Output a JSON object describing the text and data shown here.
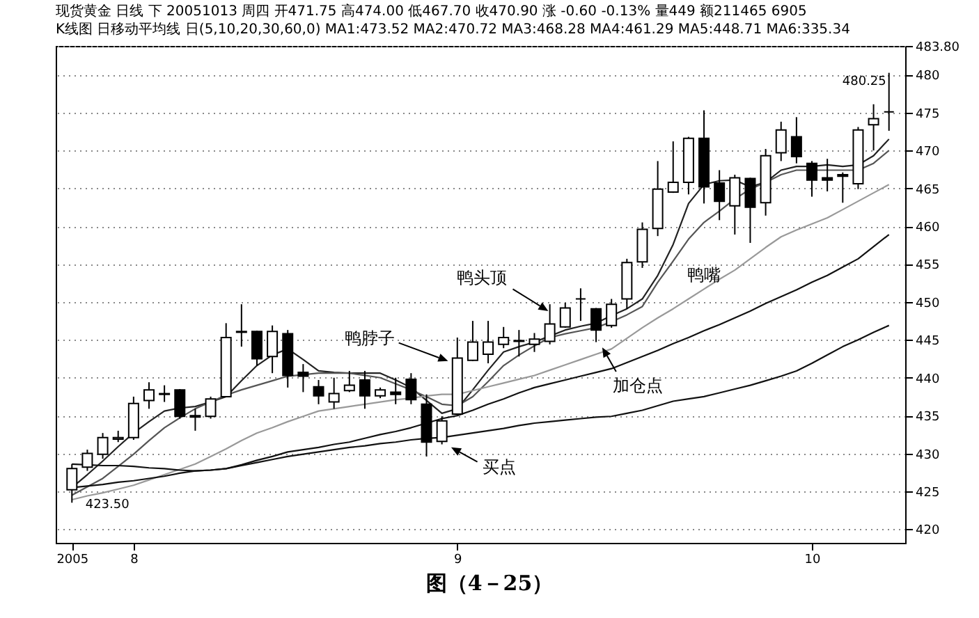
{
  "chart_data": {
    "type": "candlestick",
    "title": "现货黄金 日线 下 20051013 周四 开471.75 高474.00 低467.70 收470.90 涨 -0.60 -0.13% 量449 额211465 6905",
    "subtitle": "K线图 日移动平均线 日(5,10,20,30,60,0) MA1:473.52 MA2:470.72 MA3:468.28 MA4:461.29 MA5:448.71 MA6:335.34",
    "categories": [
      "2005",
      null,
      null,
      null,
      "8",
      null,
      null,
      null,
      null,
      null,
      null,
      null,
      null,
      null,
      null,
      null,
      null,
      null,
      null,
      null,
      null,
      null,
      null,
      null,
      null,
      "9",
      null,
      null,
      null,
      null,
      null,
      null,
      null,
      null,
      null,
      null,
      null,
      null,
      null,
      null,
      null,
      null,
      null,
      null,
      null,
      null,
      null,
      null,
      "10",
      null,
      null,
      null,
      null,
      null
    ],
    "ohlc": [
      [
        425.2,
        428.6,
        423.5,
        428.0
      ],
      [
        428.2,
        430.5,
        427.7,
        430.0
      ],
      [
        429.9,
        432.7,
        429.3,
        432.1
      ],
      [
        431.9,
        433.0,
        431.5,
        432.1
      ],
      [
        432.1,
        437.5,
        431.8,
        436.6
      ],
      [
        437.0,
        439.4,
        435.9,
        438.4
      ],
      [
        437.8,
        439.0,
        436.8,
        437.9
      ],
      [
        438.4,
        438.5,
        434.6,
        434.9
      ],
      [
        435.0,
        435.9,
        433.0,
        434.8
      ],
      [
        434.9,
        437.5,
        434.6,
        437.2
      ],
      [
        437.5,
        447.2,
        437.4,
        445.3
      ],
      [
        446.1,
        449.7,
        444.1,
        446.0
      ],
      [
        446.1,
        446.2,
        441.6,
        442.5
      ],
      [
        442.8,
        446.9,
        440.6,
        446.1
      ],
      [
        445.8,
        446.3,
        438.7,
        440.3
      ],
      [
        440.7,
        441.8,
        438.1,
        440.2
      ],
      [
        438.8,
        439.7,
        436.5,
        437.6
      ],
      [
        436.8,
        440.0,
        435.9,
        437.9
      ],
      [
        438.3,
        440.9,
        438.1,
        439.0
      ],
      [
        439.7,
        440.9,
        435.9,
        437.6
      ],
      [
        437.6,
        438.7,
        437.3,
        438.4
      ],
      [
        438.1,
        440.0,
        436.5,
        437.8
      ],
      [
        439.8,
        440.6,
        436.5,
        437.1
      ],
      [
        436.5,
        437.8,
        429.6,
        431.5
      ],
      [
        431.6,
        434.9,
        431.2,
        434.3
      ],
      [
        435.2,
        445.3,
        435.1,
        442.6
      ],
      [
        442.3,
        447.5,
        442.2,
        444.7
      ],
      [
        443.1,
        447.5,
        441.9,
        444.7
      ],
      [
        444.4,
        446.7,
        443.9,
        445.3
      ],
      [
        444.8,
        446.3,
        442.8,
        444.9
      ],
      [
        444.4,
        445.9,
        443.4,
        445.1
      ],
      [
        444.8,
        449.7,
        444.4,
        447.1
      ],
      [
        446.7,
        449.9,
        446.6,
        449.2
      ],
      [
        450.4,
        451.8,
        447.5,
        450.4
      ],
      [
        449.1,
        449.2,
        444.7,
        446.3
      ],
      [
        446.9,
        450.4,
        446.6,
        449.7
      ],
      [
        450.4,
        455.7,
        449.1,
        455.2
      ],
      [
        455.3,
        460.5,
        454.5,
        459.6
      ],
      [
        459.7,
        468.6,
        458.7,
        464.9
      ],
      [
        464.5,
        471.2,
        464.4,
        465.8
      ],
      [
        465.8,
        471.8,
        464.2,
        471.6
      ],
      [
        471.6,
        475.3,
        463.0,
        465.2
      ],
      [
        465.7,
        467.4,
        460.8,
        463.3
      ],
      [
        462.7,
        466.8,
        458.9,
        466.4
      ],
      [
        466.3,
        466.4,
        457.8,
        462.5
      ],
      [
        463.1,
        470.2,
        461.4,
        469.3
      ],
      [
        469.7,
        473.8,
        468.6,
        472.7
      ],
      [
        471.8,
        474.4,
        468.3,
        469.2
      ],
      [
        468.3,
        468.6,
        463.9,
        466.1
      ],
      [
        466.4,
        468.9,
        464.6,
        466.1
      ],
      [
        466.8,
        467.1,
        463.1,
        466.6
      ],
      [
        465.6,
        473.1,
        464.9,
        472.7
      ],
      [
        473.4,
        476.1,
        470.0,
        474.2
      ],
      [
        475.1,
        480.25,
        472.6,
        475.1
      ]
    ],
    "colors": [
      "#ffffff",
      "#ffffff",
      "#ffffff",
      "#ffffff",
      "#ffffff",
      "#ffffff",
      "#ffffff",
      "#000000",
      "#000000",
      "#ffffff",
      "#ffffff",
      "#000000",
      "#000000",
      "#ffffff",
      "#000000",
      "#000000",
      "#000000",
      "#ffffff",
      "#ffffff",
      "#000000",
      "#ffffff",
      "#000000",
      "#000000",
      "#000000",
      "#ffffff",
      "#ffffff",
      "#ffffff",
      "#ffffff",
      "#ffffff",
      "#ffffff",
      "#ffffff",
      "#ffffff",
      "#ffffff",
      "#000000",
      "#000000",
      "#ffffff",
      "#ffffff",
      "#ffffff",
      "#ffffff",
      "#ffffff",
      "#ffffff",
      "#000000",
      "#000000",
      "#ffffff",
      "#000000",
      "#ffffff",
      "#ffffff",
      "#000000",
      "#000000",
      "#000000",
      "#000000",
      "#ffffff",
      "#ffffff",
      "#000000"
    ],
    "series": [
      {
        "type": "line",
        "color": "#222222",
        "values": [
          425.5,
          427.2,
          429,
          430.9,
          432.7,
          434.2,
          435.6,
          436,
          436.2,
          436.8,
          437.5,
          439.6,
          441.6,
          443,
          443.8,
          442.4,
          440.9,
          440.7,
          440.6,
          440.6,
          440.6,
          439.7,
          438.7,
          437,
          435.3,
          435.9,
          438.4,
          441,
          443.4,
          444.1,
          444.7,
          445.5,
          446.3,
          446.8,
          447.2,
          448.2,
          449.1,
          450.4,
          453.5,
          457.6,
          463,
          465.5,
          466,
          466.1,
          465.2,
          465.8,
          467.4,
          467.9,
          467.9,
          468.1,
          467.9,
          468.1,
          469.3,
          471.5
        ]
      },
      {
        "type": "line",
        "color": "#555555",
        "values": [
          424.5,
          425.6,
          426.7,
          428.3,
          429.9,
          431.7,
          433.4,
          434.7,
          435.9,
          436.8,
          437.7,
          438.4,
          439,
          439.6,
          440.2,
          440.4,
          440.6,
          440.6,
          440.6,
          440.3,
          440,
          439.2,
          438.4,
          437.5,
          436.5,
          436.3,
          437.5,
          439.5,
          441.6,
          443,
          444.2,
          445.3,
          445.8,
          446.2,
          446.6,
          447.4,
          448.3,
          449.4,
          452.6,
          455.4,
          458.3,
          460.5,
          462,
          463.6,
          464.9,
          465.8,
          466.8,
          467.4,
          467.4,
          467.4,
          467.4,
          467.4,
          468.3,
          470
        ]
      },
      {
        "type": "line",
        "color": "#999999",
        "values": [
          423.9,
          424.4,
          424.8,
          425.3,
          425.8,
          426.5,
          427.2,
          427.9,
          428.6,
          429.6,
          430.6,
          431.7,
          432.7,
          433.4,
          434.2,
          434.9,
          435.6,
          435.9,
          436.2,
          436.5,
          436.8,
          437.1,
          437.3,
          437.6,
          437.8,
          437.8,
          438.3,
          438.8,
          439.3,
          439.8,
          440.3,
          441,
          441.7,
          442.4,
          443.1,
          443.8,
          445.2,
          446.6,
          447.9,
          449.1,
          450.4,
          451.7,
          453,
          454.2,
          455.7,
          457.2,
          458.6,
          459.5,
          460.3,
          461.1,
          462.2,
          463.3,
          464.4,
          465.5
        ]
      },
      {
        "type": "line",
        "color": "#111111",
        "values": [
          425.5,
          425.7,
          425.9,
          426.2,
          426.4,
          426.7,
          427,
          427.4,
          427.7,
          427.8,
          428,
          428.5,
          429.1,
          429.6,
          430.2,
          430.5,
          430.8,
          431.2,
          431.5,
          432,
          432.5,
          432.9,
          433.4,
          434,
          434.6,
          435,
          435.7,
          436.5,
          437.2,
          438,
          438.7,
          439.2,
          439.7,
          440.2,
          440.7,
          441.2,
          442,
          442.8,
          443.6,
          444.5,
          445.3,
          446.2,
          447,
          447.9,
          448.8,
          449.8,
          450.7,
          451.6,
          452.6,
          453.5,
          454.6,
          455.7,
          457.3,
          458.9
        ]
      },
      {
        "type": "line",
        "color": "#111111",
        "values": [
          428.6,
          428.5,
          428.4,
          428.4,
          428.3,
          428.1,
          428,
          427.8,
          427.7,
          427.8,
          428,
          428.4,
          428.8,
          429.2,
          429.6,
          429.9,
          430.2,
          430.5,
          430.8,
          431,
          431.3,
          431.5,
          431.8,
          432,
          432.1,
          432.4,
          432.7,
          433,
          433.3,
          433.7,
          434,
          434.2,
          434.4,
          434.6,
          434.8,
          434.9,
          435.3,
          435.7,
          436.3,
          436.9,
          437.2,
          437.5,
          438,
          438.5,
          439,
          439.6,
          440.2,
          440.9,
          441.9,
          443,
          444.1,
          445,
          446,
          446.9
        ]
      }
    ],
    "ylim": [
      418.2,
      483.8
    ],
    "yticks": [
      420,
      425,
      430,
      435,
      440,
      445,
      450,
      455,
      460,
      465,
      470,
      475,
      480,
      {
        "value": 483.8,
        "label": "483.80"
      }
    ],
    "grid": "y",
    "annotations": [
      "鸭脖子",
      "鸭头顶",
      "鸭嘴",
      "加仓点",
      "买点",
      {
        "text": "423.50",
        "x": "2005",
        "y": 423.5
      },
      "480.25",
      "图（4－25）"
    ]
  }
}
